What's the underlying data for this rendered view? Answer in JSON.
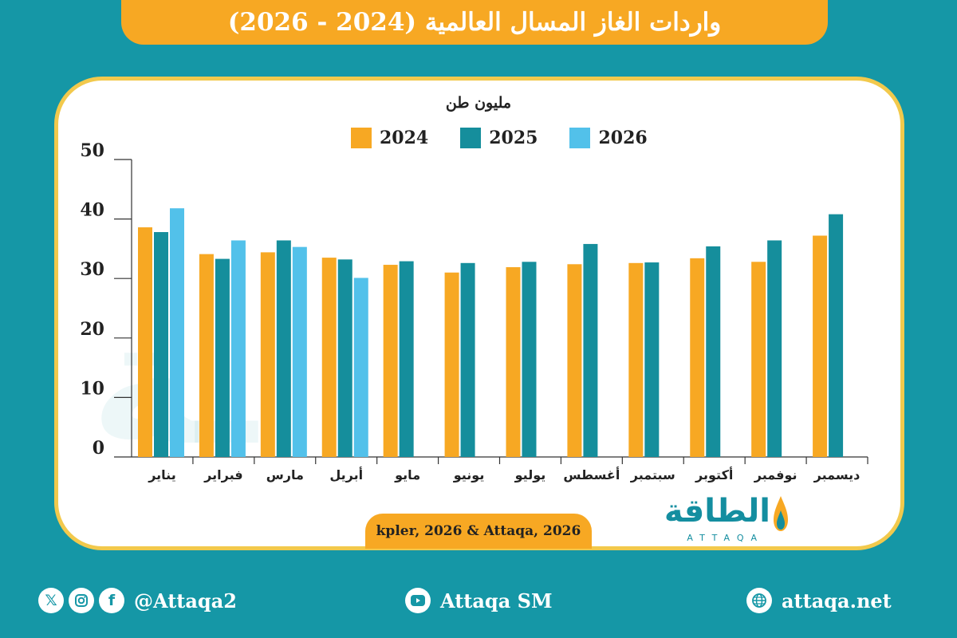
{
  "header": {
    "title": "واردات الغاز المسال العالمية (2024 - 2026)"
  },
  "chart_data": {
    "type": "bar",
    "ylabel": "مليون طن",
    "ylim": [
      0,
      50
    ],
    "yticks": [
      0,
      10,
      20,
      30,
      40,
      50
    ],
    "grid": false,
    "legend_position": "top-center",
    "categories": [
      "يناير",
      "فبراير",
      "مارس",
      "أبريل",
      "مايو",
      "يونيو",
      "يوليو",
      "أغسطس",
      "سبتمبر",
      "أكتوبر",
      "نوفمبر",
      "ديسمبر"
    ],
    "series": [
      {
        "name": "2024",
        "color": "#f7a823",
        "values": [
          38.6,
          34.1,
          34.4,
          33.5,
          32.3,
          31.0,
          31.9,
          32.4,
          32.6,
          33.4,
          32.8,
          37.2
        ]
      },
      {
        "name": "2025",
        "color": "#158e9c",
        "values": [
          37.8,
          33.3,
          36.4,
          33.2,
          32.9,
          32.6,
          32.8,
          35.8,
          32.7,
          35.4,
          36.4,
          40.8
        ]
      },
      {
        "name": "2026",
        "color": "#52c1ea",
        "values": [
          41.8,
          36.4,
          35.3,
          30.1,
          null,
          null,
          null,
          null,
          null,
          null,
          null,
          null
        ]
      }
    ]
  },
  "source": "kpler, 2026 & Attaqa, 2026",
  "logo": {
    "arabic": "الطاقة",
    "latin": "ATTAQA"
  },
  "footer": {
    "social_handle": "@Attaqa2",
    "youtube": "Attaqa SM",
    "website": "attaqa.net"
  },
  "icons": [
    "x-icon",
    "instagram-icon",
    "facebook-icon",
    "youtube-icon",
    "globe-icon"
  ]
}
